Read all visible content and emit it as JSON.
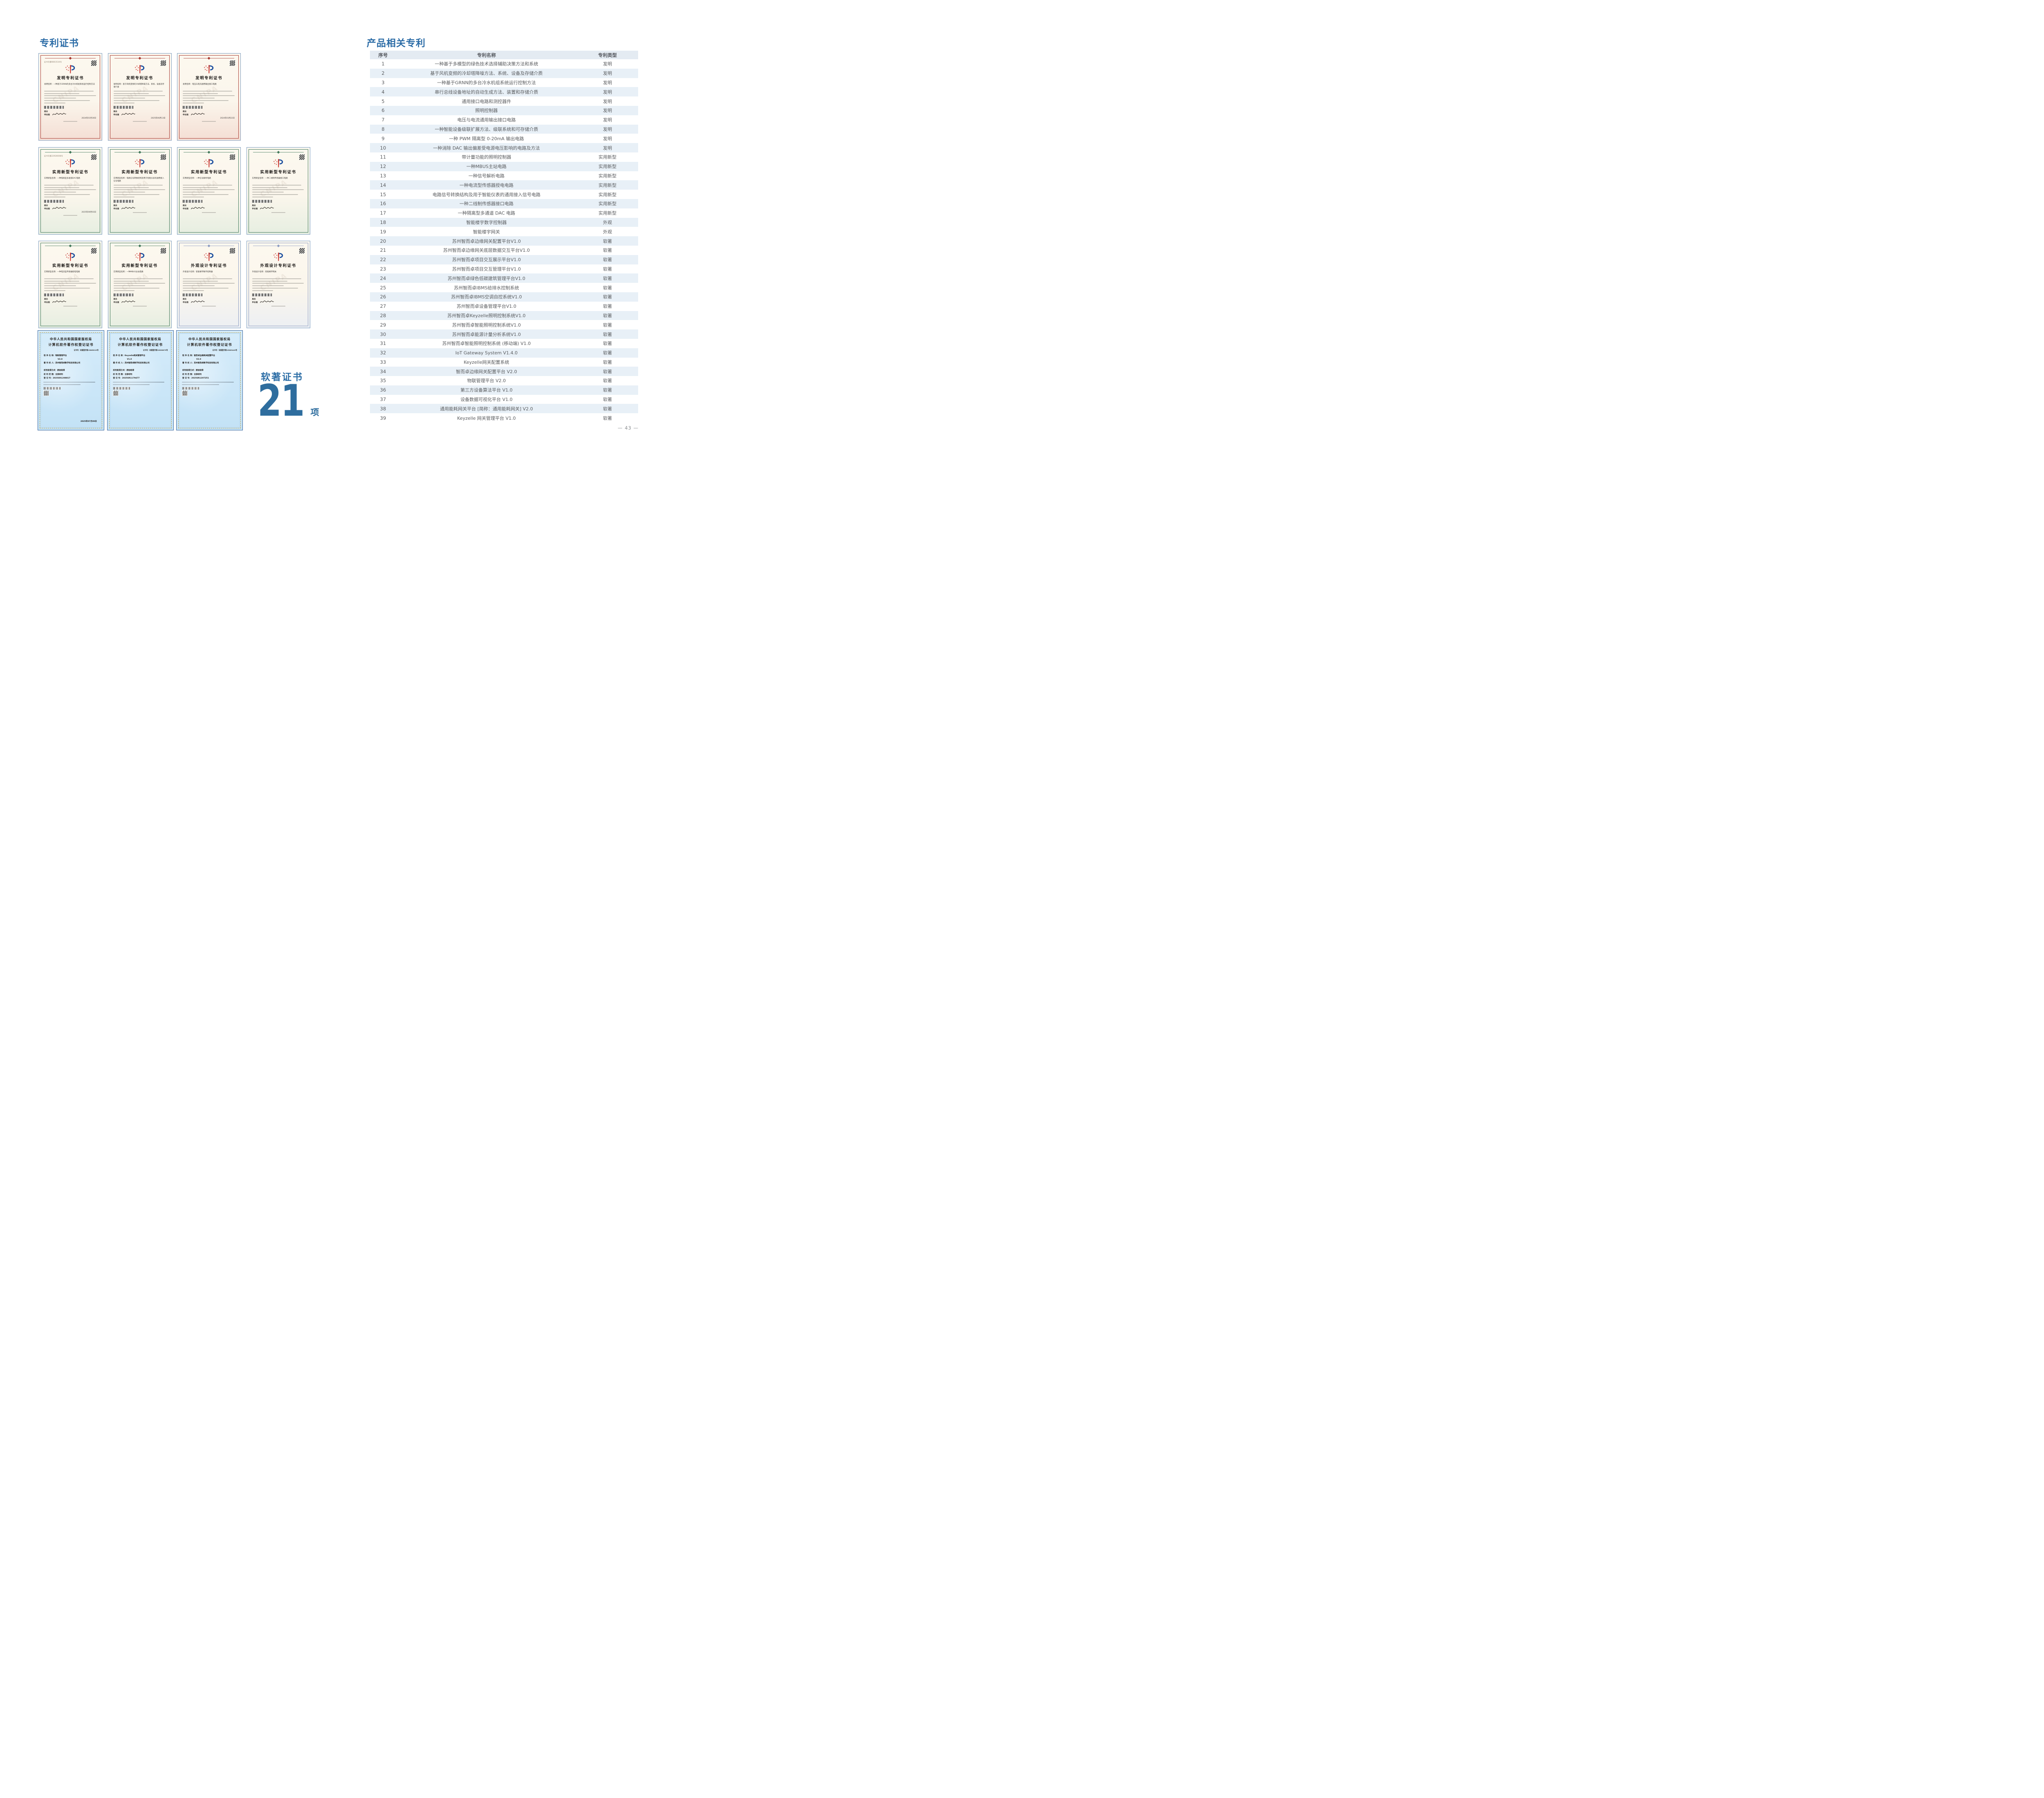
{
  "page": {
    "number": "— 43 —"
  },
  "left": {
    "title": "专利证书",
    "sign": {
      "post": "局长",
      "name": "申长雨"
    },
    "soft": {
      "label": "软著证书",
      "count": "21",
      "unit": "项"
    },
    "rows": [
      {
        "certs": [
          {
            "kind": "invention",
            "title": "发明专利证书",
            "name_label": "发明名称：",
            "name": "一种基于GRNN的多台冷水机组系统运行控制方法",
            "cert_no": "证书号第6661534号",
            "date": "2024年01月30日"
          },
          {
            "kind": "invention",
            "title": "发明专利证书",
            "name_label": "发明名称：",
            "name": "基于风机变频的冷却塔降噪方法、系统、设备及存储介质",
            "cert_no": "",
            "date": "2025年06月13日"
          },
          {
            "kind": "invention",
            "title": "发明专利证书",
            "name_label": "发明名称：",
            "name": "电压与电流通用输出接口电路",
            "cert_no": "",
            "date": "2024年03月22日"
          }
        ]
      },
      {
        "certs": [
          {
            "kind": "utility",
            "title": "实用新型专利证书",
            "name_label": "实用新型名称：",
            "name": "一种隔离型多通道DAC电路",
            "cert_no": "证书号第22926608号",
            "date": "2025年06月03日"
          },
          {
            "kind": "utility",
            "title": "实用新型专利证书",
            "name_label": "实用新型名称：",
            "name": "电路信号转换结构及用于智能仪表的通用接入信号电路",
            "cert_no": "",
            "date": ""
          },
          {
            "kind": "utility",
            "title": "实用新型专利证书",
            "name_label": "实用新型名称：",
            "name": "一种信号解析电路",
            "cert_no": "",
            "date": ""
          },
          {
            "kind": "utility",
            "title": "实用新型专利证书",
            "name_label": "实用新型名称：",
            "name": "一种二线制传感器接口电路",
            "cert_no": "",
            "date": ""
          }
        ]
      },
      {
        "certs": [
          {
            "kind": "utility",
            "title": "实用新型专利证书",
            "name_label": "实用新型名称：",
            "name": "一种电流型传感器授电电路",
            "cert_no": "",
            "date": ""
          },
          {
            "kind": "utility",
            "title": "实用新型专利证书",
            "name_label": "实用新型名称：",
            "name": "一种MBUS主站电路",
            "cert_no": "",
            "date": ""
          },
          {
            "kind": "design",
            "title": "外观设计专利证书",
            "name_label": "外观设计名称：",
            "name": "智能楼宇数字控制器",
            "cert_no": "",
            "date": ""
          },
          {
            "kind": "design",
            "title": "外观设计专利证书",
            "name_label": "外观设计名称：",
            "name": "智能楼宇网关",
            "cert_no": "",
            "date": ""
          }
        ]
      },
      {
        "certs": [
          {
            "kind": "software",
            "title1": "中华人民共和国国家版权局",
            "title2": "计算机软件著作权登记证书",
            "cert_no": "证书号：软著登字第15865015号",
            "name_label": "软 件 名 称：",
            "name": "物联管理平台",
            "version": "V2.0",
            "owner_label": "著 作 权 人：",
            "owner": "苏州智而卓数字科技有限公司",
            "acq_label": "权利取得方式：",
            "acq": "原始取得",
            "scope_label": "权 利 范 围：",
            "scope": "全部权利",
            "reg_label": "登 记 号：",
            "reg": "2025SR1208817",
            "date": "2025年07月09日"
          },
          {
            "kind": "software",
            "title1": "中华人民共和国国家版权局",
            "title2": "计算机软件著作权登记证书",
            "cert_no": "证书号：软著登字第15836675号",
            "name_label": "软 件 名 称：",
            "name": "Keyzelle网关管理平台",
            "version": "V1.0",
            "owner_label": "著 作 权 人：",
            "owner": "苏州智而卓数字科技有限公司",
            "acq_label": "权利取得方式：",
            "acq": "原始取得",
            "scope_label": "权 利 范 围：",
            "scope": "全部权利",
            "reg_label": "登 记 号：",
            "reg": "2025SR1179477",
            "date": ""
          },
          {
            "kind": "software",
            "title1": "中华人民共和国国家版权局",
            "title2": "计算机软件著作权登记证书",
            "cert_no": "证书号：软著登字第15863449号",
            "name_label": "软 件 名 称：",
            "name": "智而卓边缘网关配置平台",
            "version": "V2.0",
            "owner_label": "著 作 权 人：",
            "owner": "苏州智而卓数字科技有限公司",
            "acq_label": "权利取得方式：",
            "acq": "原始取得",
            "scope_label": "权 利 范 围：",
            "scope": "全部权利",
            "reg_label": "登 记 号：",
            "reg": "2025SR1207251",
            "date": ""
          }
        ]
      }
    ]
  },
  "right": {
    "title": "产品相关专利",
    "columns": [
      "序号",
      "专利名称",
      "专利类型"
    ],
    "rows": [
      [
        "1",
        "一种基于多模型的绿色技术选择辅助决策方法和系统",
        "发明"
      ],
      [
        "2",
        "基于风机变频的冷却塔降噪方法、系统、设备及存储介质",
        "发明"
      ],
      [
        "3",
        "一种基于GRNN的多台冷水机组系统运行控制方法",
        "发明"
      ],
      [
        "4",
        "串行总线设备地址的自动生成方法、装置和存储介质",
        "发明"
      ],
      [
        "5",
        "通用接口电路和测控器件",
        "发明"
      ],
      [
        "6",
        "照明控制器",
        "发明"
      ],
      [
        "7",
        "电压与电流通用输出接口电路",
        "发明"
      ],
      [
        "8",
        "一种智能设备级联扩展方法、级联系统和可存储介质",
        "发明"
      ],
      [
        "9",
        "一种 PWM 隔离型 0-20mA 输出电路",
        "发明"
      ],
      [
        "10",
        "一种消除 DAC 输出偏差受电源电压影响的电路及方法",
        "发明"
      ],
      [
        "11",
        "带计量功能的照明控制器",
        "实用新型"
      ],
      [
        "12",
        "一种MBUS主站电路",
        "实用新型"
      ],
      [
        "13",
        "一种信号解析电路",
        "实用新型"
      ],
      [
        "14",
        "一种电流型传感器授电电路",
        "实用新型"
      ],
      [
        "15",
        "电路信号转换结构及用于智能仪表的通用接入信号电路",
        "实用新型"
      ],
      [
        "16",
        "一种二线制传感器接口电路",
        "实用新型"
      ],
      [
        "17",
        "一种隔离型多通道 DAC 电路",
        "实用新型"
      ],
      [
        "18",
        "智能楼宇数字控制器",
        "外观"
      ],
      [
        "19",
        "智能楼宇网关",
        "外观"
      ],
      [
        "20",
        "苏州智而卓边缘网关配置平台V1.0",
        "软著"
      ],
      [
        "21",
        "苏州智而卓边缘网关底层数据交互平台V1.0",
        "软著"
      ],
      [
        "22",
        "苏州智而卓项目交互展示平台V1.0",
        "软著"
      ],
      [
        "23",
        "苏州智而卓项目交互管理平台V1.0",
        "软著"
      ],
      [
        "24",
        "苏州智而卓绿色低碳建筑管理平台V1.0",
        "软著"
      ],
      [
        "25",
        "苏州智而卓IBMS给排水控制系统",
        "软著"
      ],
      [
        "26",
        "苏州智而卓IBMS空调自控系统V1.0",
        "软著"
      ],
      [
        "27",
        "苏州智而卓设备管理平台V1.0",
        "软著"
      ],
      [
        "28",
        "苏州智而卓Keyzelle照明控制系统V1.0",
        "软著"
      ],
      [
        "29",
        "苏州智而卓智能照明控制系统V1.0",
        "软著"
      ],
      [
        "30",
        "苏州智而卓能源计量分析系统V1.0",
        "软著"
      ],
      [
        "31",
        "苏州智而卓智能照明控制系统 (移动端) V1.0",
        "软著"
      ],
      [
        "32",
        "IoT Gateway System V1.4.0",
        "软著"
      ],
      [
        "33",
        "Keyzelle网关配置系统",
        "软著"
      ],
      [
        "34",
        "智而卓边缘网关配置平台 V2.0",
        "软著"
      ],
      [
        "35",
        "物联管理平台 V2.0",
        "软著"
      ],
      [
        "36",
        "第三方设备算法平台 V1.0",
        "软著"
      ],
      [
        "37",
        "设备数据可视化平台 V1.0",
        "软著"
      ],
      [
        "38",
        "通用能耗网关平台 [简称：通用能耗网关] V2.0",
        "软著"
      ],
      [
        "39",
        "Keyzelle 网关管理平台 V1.0",
        "软著"
      ]
    ]
  }
}
